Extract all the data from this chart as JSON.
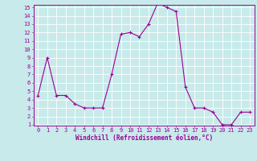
{
  "x": [
    0,
    1,
    2,
    3,
    4,
    5,
    6,
    7,
    8,
    9,
    10,
    11,
    12,
    13,
    14,
    15,
    16,
    17,
    18,
    19,
    20,
    21,
    22,
    23
  ],
  "y": [
    4.5,
    9.0,
    4.5,
    4.5,
    3.5,
    3.0,
    3.0,
    3.0,
    7.0,
    11.8,
    12.0,
    11.5,
    13.0,
    15.5,
    15.0,
    14.5,
    5.5,
    3.0,
    3.0,
    2.5,
    1.0,
    1.0,
    2.5,
    2.5
  ],
  "line_color": "#990099",
  "marker": "+",
  "marker_size": 3,
  "bg_color": "#c8eaea",
  "grid_color": "#aadddd",
  "axis_color": "#990099",
  "xlabel": "Windchill (Refroidissement éolien,°C)",
  "ylim": [
    1,
    15
  ],
  "xlim": [
    -0.5,
    23.5
  ],
  "yticks": [
    1,
    2,
    3,
    4,
    5,
    6,
    7,
    8,
    9,
    10,
    11,
    12,
    13,
    14,
    15
  ],
  "xticks": [
    0,
    1,
    2,
    3,
    4,
    5,
    6,
    7,
    8,
    9,
    10,
    11,
    12,
    13,
    14,
    15,
    16,
    17,
    18,
    19,
    20,
    21,
    22,
    23
  ],
  "tick_font_size": 5.0,
  "label_font_size": 5.5
}
